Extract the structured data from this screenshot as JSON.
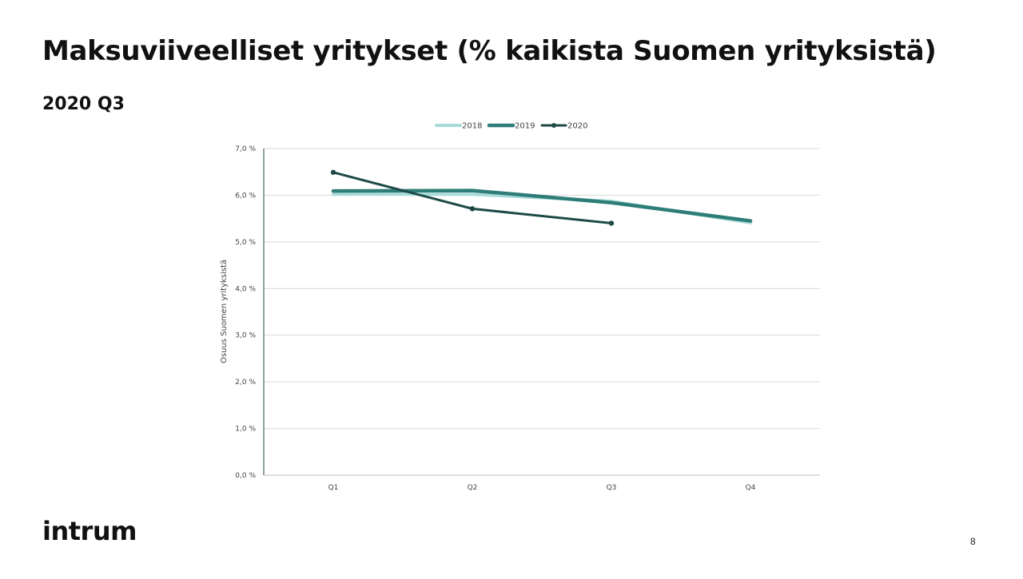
{
  "slide": {
    "title": "Maksuviiveelliset yritykset (% kaikista Suomen yrityksistä)",
    "subtitle": "2020 Q3",
    "logo": "intrum",
    "page_number": "8"
  },
  "chart_data": {
    "type": "line",
    "title": "",
    "xlabel": "",
    "ylabel": "Osuus Suomen yrityksistä",
    "categories": [
      "Q1",
      "Q2",
      "Q3",
      "Q4"
    ],
    "ylim": [
      0,
      7
    ],
    "y_ticks": [
      0,
      1,
      2,
      3,
      4,
      5,
      6,
      7
    ],
    "y_tick_labels": [
      "0,0 %",
      "1,0 %",
      "2,0 %",
      "3,0 %",
      "4,0 %",
      "5,0 %",
      "6,0 %",
      "7,0 %"
    ],
    "grid": "horizontal",
    "legend_position": "top",
    "series": [
      {
        "name": "2018",
        "values": [
          6.02,
          6.02,
          5.87,
          5.41
        ],
        "color": "#a8dbd9",
        "markers": false
      },
      {
        "name": "2019",
        "values": [
          6.09,
          6.1,
          5.84,
          5.45
        ],
        "color": "#2e7d78",
        "markers": false
      },
      {
        "name": "2020",
        "values": [
          6.49,
          5.71,
          5.4,
          null
        ],
        "color": "#1d4a47",
        "markers": true
      }
    ]
  }
}
